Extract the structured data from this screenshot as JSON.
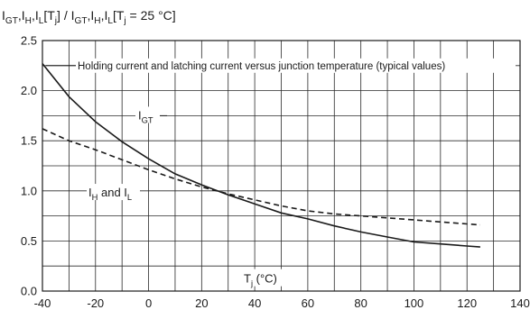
{
  "chart_data": {
    "type": "line",
    "title_parts": [
      {
        "t": "I"
      },
      {
        "t": "GT",
        "sub": true
      },
      {
        "t": ",I"
      },
      {
        "t": "H",
        "sub": true
      },
      {
        "t": ",I"
      },
      {
        "t": "L",
        "sub": true
      },
      {
        "t": "[T"
      },
      {
        "t": "j",
        "sub": true
      },
      {
        "t": "] / I"
      },
      {
        "t": "GT",
        "sub": true
      },
      {
        "t": ",I"
      },
      {
        "t": "H",
        "sub": true
      },
      {
        "t": ",I"
      },
      {
        "t": "L",
        "sub": true
      },
      {
        "t": "[T"
      },
      {
        "t": "j",
        "sub": true
      },
      {
        "t": " = 25 °C]"
      }
    ],
    "annotation": "Holding current and latching current versus junction temperature (typical values)",
    "xlabel_parts": [
      {
        "t": "T"
      },
      {
        "t": "j",
        "sub": true
      },
      {
        "t": " (°C)"
      }
    ],
    "xlim": [
      -40,
      140
    ],
    "ylim": [
      0,
      2.5
    ],
    "x_ticks": [
      -40,
      -20,
      0,
      20,
      40,
      60,
      80,
      100,
      120,
      140
    ],
    "x_tick_labels": [
      "-40",
      "-20",
      "0",
      "20",
      "40",
      "60",
      "80",
      "100",
      "120",
      "140"
    ],
    "y_ticks": [
      0,
      0.5,
      1.0,
      1.5,
      2.0,
      2.5
    ],
    "y_tick_labels": [
      "0.0",
      "0.5",
      "1.0",
      "1.5",
      "2.0",
      "2.5"
    ],
    "x_grid_step": 10,
    "y_grid_step": 0.25,
    "grid": true,
    "series": [
      {
        "label_parts": [
          {
            "t": "I"
          },
          {
            "t": "GT",
            "sub": true
          }
        ],
        "style": "solid",
        "color": "#1a1a1a",
        "x": [
          -40,
          -30,
          -20,
          -10,
          0,
          10,
          20,
          30,
          40,
          50,
          60,
          70,
          80,
          90,
          100,
          110,
          120,
          125
        ],
        "y": [
          2.27,
          1.94,
          1.69,
          1.49,
          1.32,
          1.17,
          1.06,
          0.96,
          0.87,
          0.78,
          0.72,
          0.65,
          0.59,
          0.54,
          0.49,
          0.47,
          0.45,
          0.44
        ]
      },
      {
        "label_parts": [
          {
            "t": "I"
          },
          {
            "t": "H",
            "sub": true
          },
          {
            "t": " and I"
          },
          {
            "t": "L",
            "sub": true
          }
        ],
        "style": "dashed",
        "color": "#1a1a1a",
        "x": [
          -40,
          -30,
          -20,
          -10,
          0,
          10,
          20,
          30,
          40,
          50,
          60,
          70,
          80,
          90,
          100,
          110,
          120,
          125
        ],
        "y": [
          1.62,
          1.5,
          1.41,
          1.31,
          1.21,
          1.12,
          1.04,
          0.97,
          0.91,
          0.85,
          0.8,
          0.77,
          0.75,
          0.73,
          0.71,
          0.69,
          0.67,
          0.66
        ]
      }
    ]
  }
}
